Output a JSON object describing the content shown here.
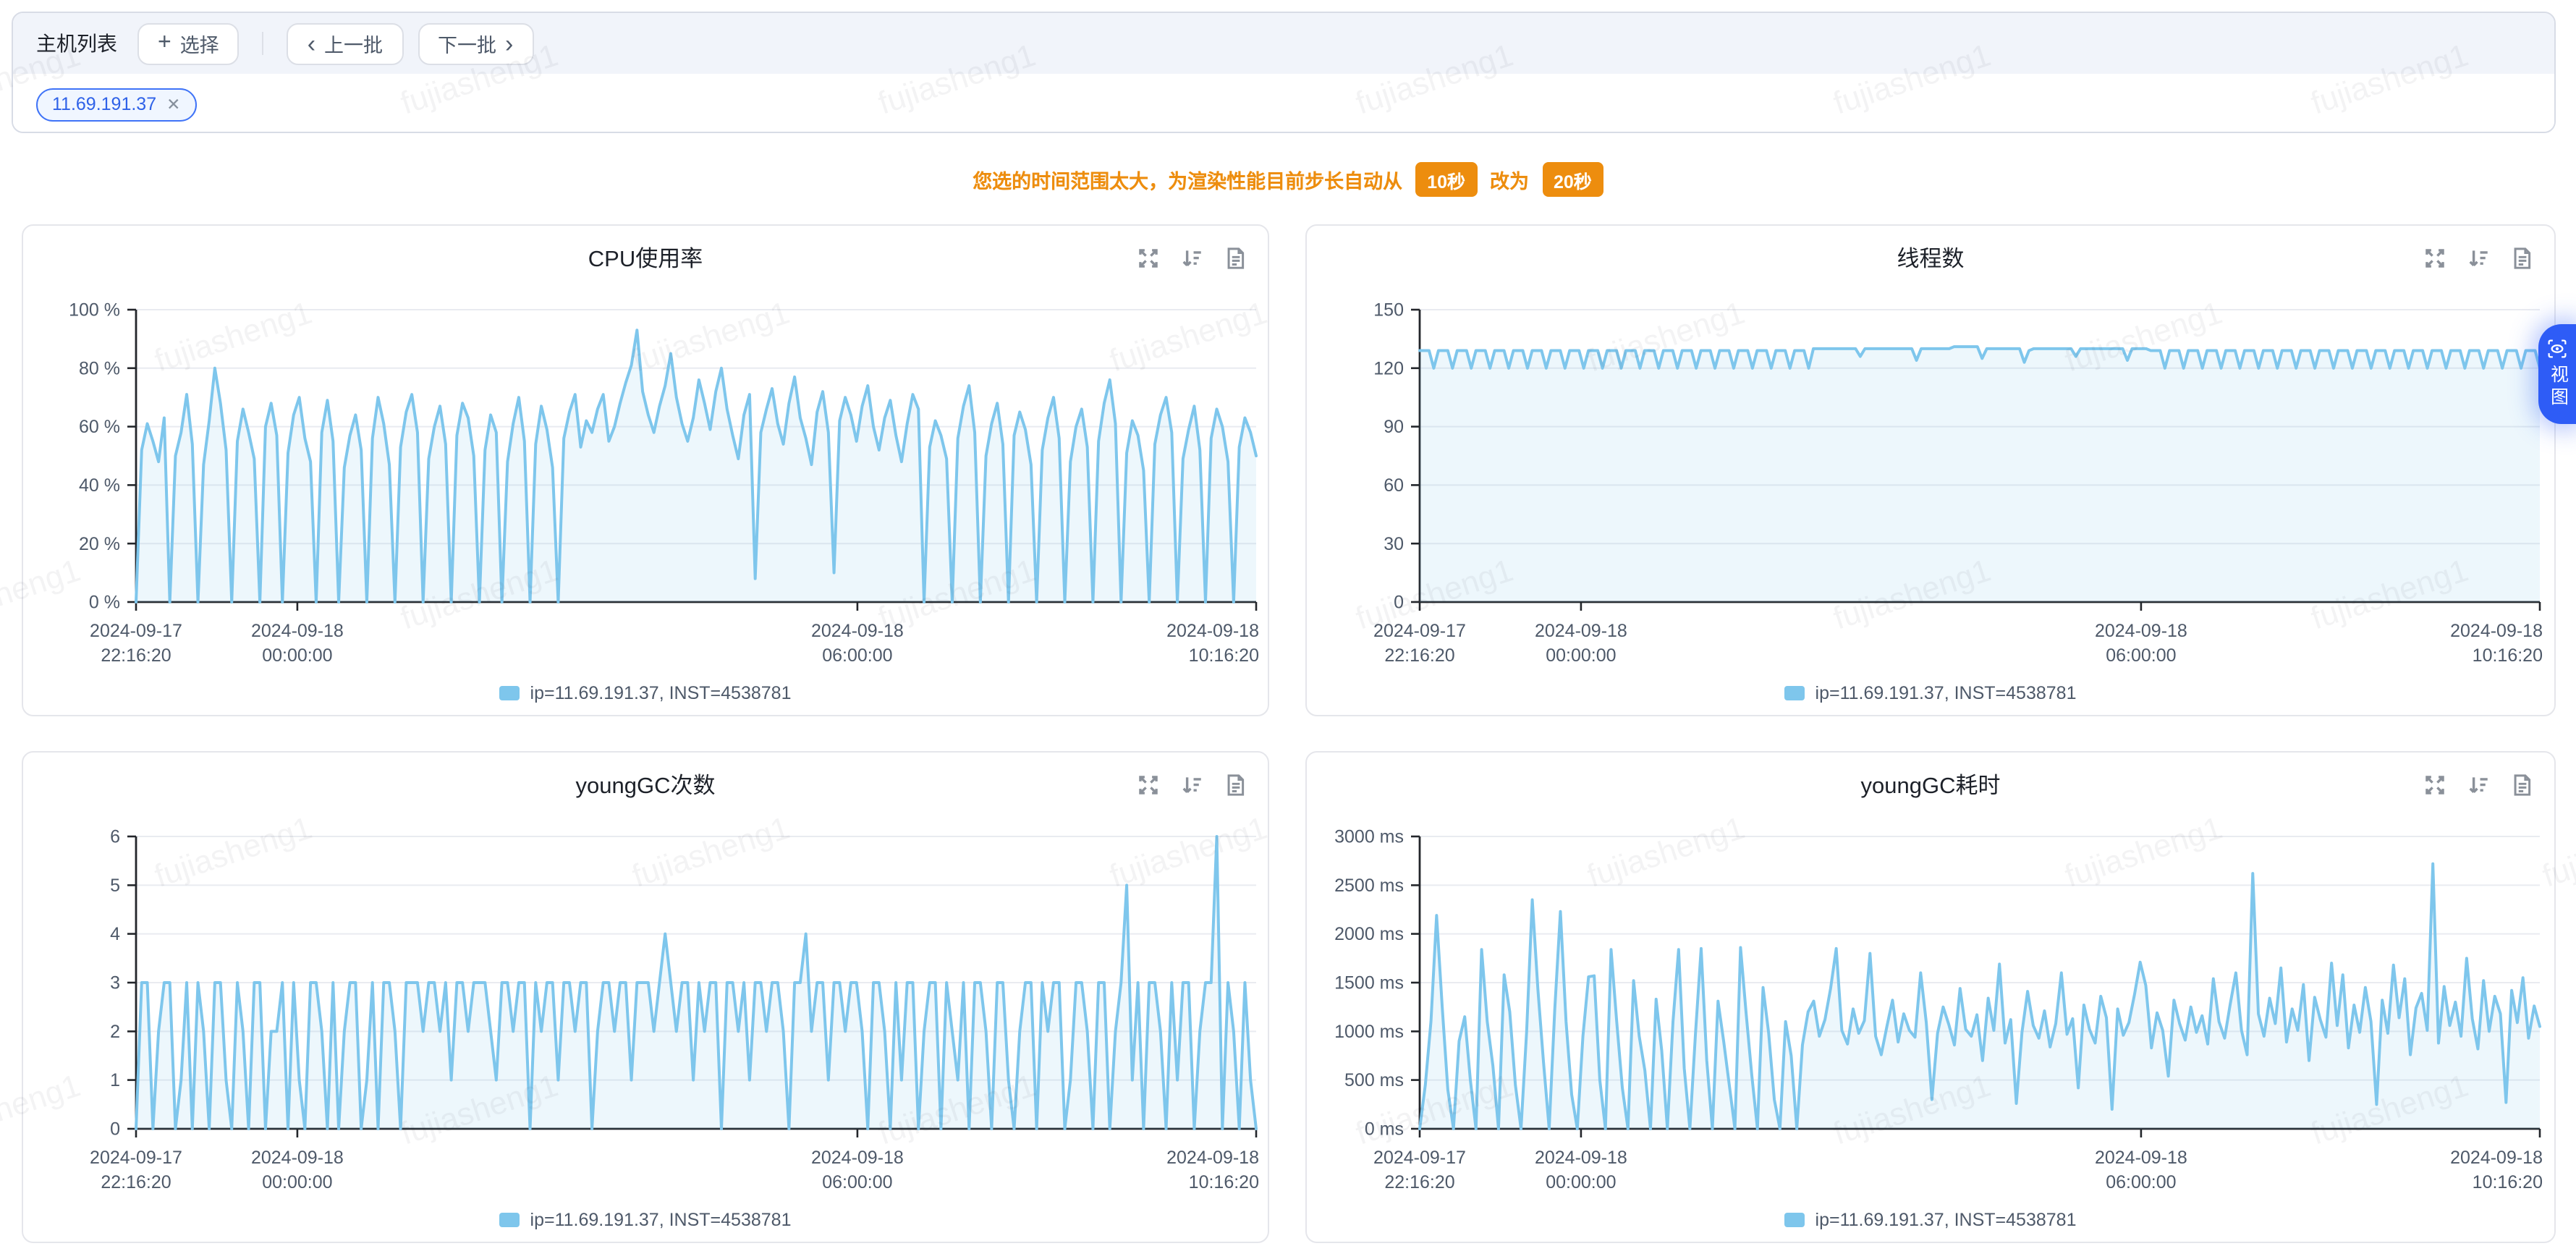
{
  "toolbar": {
    "title": "主机列表",
    "select_label": "选择",
    "prev_label": "上一批",
    "next_label": "下一批"
  },
  "tags": [
    {
      "label": "11.69.191.37"
    }
  ],
  "notice": {
    "text_before": "您选的时间范围太大，为渲染性能目前步长自动从",
    "old_value": "10秒",
    "middle_text": "改为",
    "new_value": "20秒"
  },
  "side_tab": {
    "label": "视图"
  },
  "watermark": "fujiasheng1",
  "chart_data": [
    {
      "type": "area-line",
      "title": "CPU使用率",
      "legend": "ip=11.69.191.37, INST=4538781",
      "unit": "%",
      "y_ticks": [
        0,
        20,
        40,
        60,
        80,
        100
      ],
      "y_max": 100,
      "color": "#7EC6EC",
      "x_ticks": [
        {
          "pos": 0,
          "date": "2024-09-17",
          "time": "22:16:20"
        },
        {
          "pos": 0.144,
          "date": "2024-09-18",
          "time": "00:00:00"
        },
        {
          "pos": 0.644,
          "date": "2024-09-18",
          "time": "06:00:00"
        },
        {
          "pos": 1,
          "date": "2024-09-18",
          "time": "10:16:20"
        }
      ],
      "values": [
        0,
        52,
        61,
        55,
        48,
        63,
        0,
        50,
        58,
        71,
        54,
        0,
        47,
        62,
        80,
        68,
        52,
        0,
        55,
        66,
        58,
        49,
        0,
        60,
        68,
        57,
        0,
        51,
        64,
        70,
        56,
        48,
        0,
        58,
        69,
        55,
        0,
        46,
        57,
        64,
        52,
        0,
        56,
        70,
        61,
        47,
        0,
        53,
        65,
        71,
        58,
        0,
        49,
        60,
        67,
        54,
        0,
        57,
        68,
        63,
        50,
        0,
        52,
        64,
        58,
        0,
        48,
        61,
        70,
        55,
        0,
        54,
        67,
        59,
        46,
        0,
        56,
        65,
        71,
        53,
        62,
        58,
        66,
        71,
        55,
        60,
        68,
        75,
        81,
        93,
        72,
        64,
        58,
        67,
        74,
        85,
        70,
        61,
        55,
        63,
        76,
        68,
        59,
        72,
        80,
        66,
        57,
        49,
        64,
        71,
        8,
        58,
        66,
        73,
        61,
        54,
        68,
        77,
        63,
        56,
        47,
        65,
        72,
        58,
        10,
        62,
        70,
        64,
        55,
        67,
        74,
        60,
        52,
        63,
        69,
        57,
        48,
        61,
        71,
        66,
        0,
        53,
        62,
        57,
        49,
        0,
        56,
        67,
        74,
        58,
        0,
        50,
        61,
        68,
        54,
        0,
        57,
        65,
        59,
        47,
        0,
        52,
        63,
        70,
        56,
        0,
        48,
        60,
        66,
        53,
        0,
        55,
        68,
        76,
        61,
        0,
        51,
        62,
        57,
        45,
        0,
        54,
        64,
        70,
        58,
        0,
        49,
        59,
        67,
        52,
        0,
        56,
        66,
        60,
        48,
        0,
        53,
        63,
        58,
        50
      ]
    },
    {
      "type": "area-line",
      "title": "线程数",
      "legend": "ip=11.69.191.37, INST=4538781",
      "unit": "",
      "y_ticks": [
        0,
        30,
        60,
        90,
        120,
        150
      ],
      "y_max": 150,
      "color": "#7EC6EC",
      "x_ticks": [
        {
          "pos": 0,
          "date": "2024-09-17",
          "time": "22:16:20"
        },
        {
          "pos": 0.144,
          "date": "2024-09-18",
          "time": "00:00:00"
        },
        {
          "pos": 0.644,
          "date": "2024-09-18",
          "time": "06:00:00"
        },
        {
          "pos": 1,
          "date": "2024-09-18",
          "time": "10:16:20"
        }
      ],
      "values": [
        129,
        129,
        129,
        120,
        129,
        129,
        129,
        120,
        129,
        129,
        129,
        120,
        129,
        129,
        129,
        120,
        129,
        129,
        129,
        120,
        129,
        129,
        129,
        120,
        129,
        129,
        129,
        120,
        129,
        129,
        129,
        120,
        129,
        129,
        129,
        120,
        129,
        129,
        129,
        120,
        129,
        129,
        129,
        120,
        129,
        129,
        129,
        120,
        129,
        129,
        129,
        120,
        129,
        129,
        129,
        120,
        129,
        129,
        129,
        120,
        129,
        129,
        129,
        120,
        129,
        129,
        129,
        120,
        129,
        129,
        129,
        120,
        129,
        129,
        129,
        120,
        129,
        129,
        129,
        120,
        129,
        129,
        129,
        120,
        130,
        130,
        130,
        130,
        130,
        130,
        130,
        130,
        130,
        130,
        126,
        130,
        130,
        130,
        130,
        130,
        130,
        130,
        130,
        130,
        130,
        130,
        124,
        130,
        130,
        130,
        130,
        130,
        130,
        130,
        131,
        131,
        131,
        131,
        131,
        131,
        125,
        130,
        130,
        130,
        130,
        130,
        130,
        130,
        130,
        123,
        129,
        130,
        130,
        130,
        130,
        130,
        130,
        130,
        130,
        130,
        126,
        130,
        130,
        130,
        130,
        130,
        130,
        130,
        130,
        130,
        130,
        124,
        130,
        130,
        130,
        130,
        129,
        129,
        129,
        120,
        129,
        129,
        129,
        120,
        129,
        129,
        129,
        120,
        129,
        129,
        129,
        120,
        129,
        129,
        129,
        120,
        129,
        129,
        129,
        120,
        129,
        129,
        129,
        120,
        129,
        129,
        129,
        120,
        129,
        129,
        129,
        120,
        129,
        129,
        129,
        120,
        129,
        129,
        129,
        120,
        129,
        129,
        129,
        120,
        129,
        129,
        129,
        120,
        129,
        129,
        129,
        120,
        129,
        129,
        129,
        120,
        129,
        129,
        129,
        120,
        129,
        129,
        129,
        120,
        129,
        129,
        129,
        120,
        129,
        129,
        129,
        120,
        129,
        129,
        129,
        120,
        129,
        129,
        129,
        120
      ]
    },
    {
      "type": "area-line",
      "title": "youngGC次数",
      "legend": "ip=11.69.191.37, INST=4538781",
      "unit": "",
      "y_ticks": [
        0,
        1,
        2,
        3,
        4,
        5,
        6
      ],
      "y_max": 6,
      "color": "#7EC6EC",
      "x_ticks": [
        {
          "pos": 0,
          "date": "2024-09-17",
          "time": "22:16:20"
        },
        {
          "pos": 0.144,
          "date": "2024-09-18",
          "time": "00:00:00"
        },
        {
          "pos": 0.644,
          "date": "2024-09-18",
          "time": "06:00:00"
        },
        {
          "pos": 1,
          "date": "2024-09-18",
          "time": "10:16:20"
        }
      ],
      "values": [
        0,
        3,
        3,
        0,
        2,
        3,
        3,
        0,
        1,
        3,
        0,
        3,
        2,
        0,
        3,
        3,
        1,
        0,
        3,
        2,
        0,
        3,
        3,
        0,
        2,
        2,
        3,
        0,
        3,
        1,
        0,
        3,
        3,
        2,
        0,
        3,
        0,
        2,
        3,
        3,
        0,
        1,
        3,
        0,
        3,
        3,
        2,
        0,
        3,
        3,
        3,
        2,
        3,
        3,
        2,
        3,
        1,
        3,
        3,
        2,
        3,
        3,
        3,
        2,
        1,
        3,
        3,
        2,
        3,
        3,
        0,
        3,
        2,
        3,
        3,
        1,
        3,
        3,
        2,
        3,
        3,
        0,
        2,
        3,
        3,
        2,
        3,
        3,
        1,
        3,
        3,
        3,
        2,
        3,
        4,
        3,
        2,
        3,
        3,
        1,
        3,
        2,
        3,
        3,
        0,
        3,
        3,
        2,
        3,
        1,
        3,
        3,
        2,
        3,
        3,
        2,
        0,
        3,
        3,
        4,
        2,
        3,
        3,
        1,
        3,
        3,
        2,
        3,
        3,
        2,
        0,
        3,
        3,
        2,
        0,
        3,
        1,
        3,
        3,
        0,
        2,
        3,
        3,
        0,
        3,
        2,
        1,
        3,
        0,
        3,
        3,
        2,
        0,
        3,
        3,
        1,
        0,
        2,
        3,
        3,
        0,
        3,
        2,
        3,
        3,
        0,
        1,
        3,
        3,
        2,
        0,
        3,
        3,
        0,
        2,
        3,
        5,
        1,
        3,
        0,
        3,
        3,
        2,
        0,
        3,
        1,
        3,
        3,
        0,
        2,
        3,
        3,
        6,
        0,
        3,
        2,
        0,
        3,
        1,
        0
      ]
    },
    {
      "type": "area-line",
      "title": "youngGC耗时",
      "legend": "ip=11.69.191.37, INST=4538781",
      "unit": "ms",
      "y_ticks": [
        0,
        500,
        1000,
        1500,
        2000,
        2500,
        3000
      ],
      "y_max": 3000,
      "color": "#7EC6EC",
      "x_ticks": [
        {
          "pos": 0,
          "date": "2024-09-17",
          "time": "22:16:20"
        },
        {
          "pos": 0.144,
          "date": "2024-09-18",
          "time": "00:00:00"
        },
        {
          "pos": 0.644,
          "date": "2024-09-18",
          "time": "06:00:00"
        },
        {
          "pos": 1,
          "date": "2024-09-18",
          "time": "10:16:20"
        }
      ],
      "values": [
        0,
        450,
        1100,
        2190,
        1250,
        400,
        0,
        900,
        1150,
        500,
        0,
        1840,
        1100,
        650,
        0,
        1580,
        1200,
        450,
        0,
        1000,
        2350,
        1430,
        680,
        0,
        1230,
        2230,
        1100,
        350,
        0,
        950,
        1560,
        1570,
        500,
        0,
        1840,
        1100,
        420,
        0,
        1520,
        950,
        600,
        0,
        1330,
        800,
        0,
        1100,
        1840,
        620,
        0,
        980,
        1850,
        700,
        0,
        1310,
        900,
        450,
        0,
        1860,
        1180,
        550,
        0,
        1450,
        980,
        300,
        0,
        1100,
        750,
        0,
        860,
        1200,
        1310,
        950,
        1120,
        1440,
        1850,
        1010,
        870,
        1230,
        980,
        1110,
        1800,
        950,
        760,
        1050,
        1320,
        890,
        1180,
        1010,
        940,
        1600,
        1090,
        300,
        980,
        1250,
        1070,
        860,
        1440,
        1020,
        950,
        1170,
        700,
        1340,
        1010,
        1690,
        880,
        1120,
        260,
        990,
        1410,
        1060,
        930,
        1210,
        840,
        1080,
        1600,
        970,
        1130,
        420,
        1270,
        1020,
        880,
        1360,
        1140,
        200,
        1230,
        960,
        1090,
        1380,
        1710,
        1470,
        830,
        1190,
        1010,
        540,
        1320,
        1080,
        910,
        1250,
        990,
        1160,
        870,
        1540,
        1100,
        930,
        1280,
        1600,
        1010,
        760,
        2620,
        1180,
        950,
        1340,
        1080,
        1650,
        890,
        1230,
        1010,
        1480,
        700,
        1350,
        1120,
        940,
        1700,
        1060,
        1580,
        830,
        1270,
        990,
        1450,
        1100,
        250,
        1320,
        980,
        1680,
        1140,
        1540,
        760,
        1240,
        1390,
        1010,
        2720,
        880,
        1460,
        1060,
        1300,
        950,
        1750,
        1130,
        820,
        1520,
        1000,
        1360,
        1180,
        270,
        1420,
        1090,
        1550,
        930,
        1260,
        1050
      ]
    }
  ]
}
